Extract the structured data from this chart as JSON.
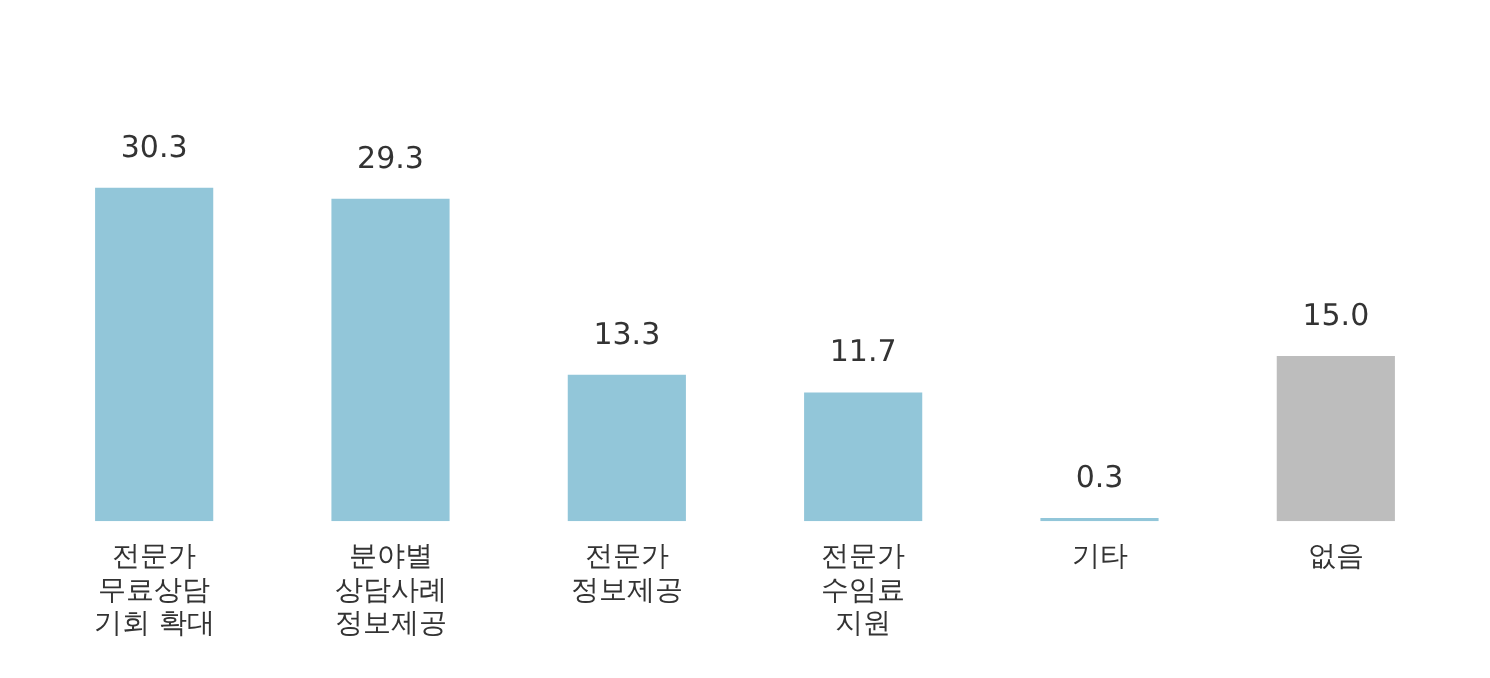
{
  "chart_data": {
    "type": "bar",
    "categories": [
      "전문가\n무료상담\n기회 확대",
      "분야별\n상담사례\n정보제공",
      "전문가\n정보제공",
      "전문가\n수임료\n지원",
      "기타",
      "없음"
    ],
    "values": [
      30.3,
      29.3,
      13.3,
      11.7,
      0.3,
      15.0
    ],
    "value_labels": [
      "30.3",
      "29.3",
      "13.3",
      "11.7",
      "0.3",
      "15.0"
    ],
    "colors": [
      "#92c6d9",
      "#92c6d9",
      "#92c6d9",
      "#92c6d9",
      "#92c6d9",
      "#bdbdbd"
    ],
    "grid": false,
    "legend": false
  }
}
